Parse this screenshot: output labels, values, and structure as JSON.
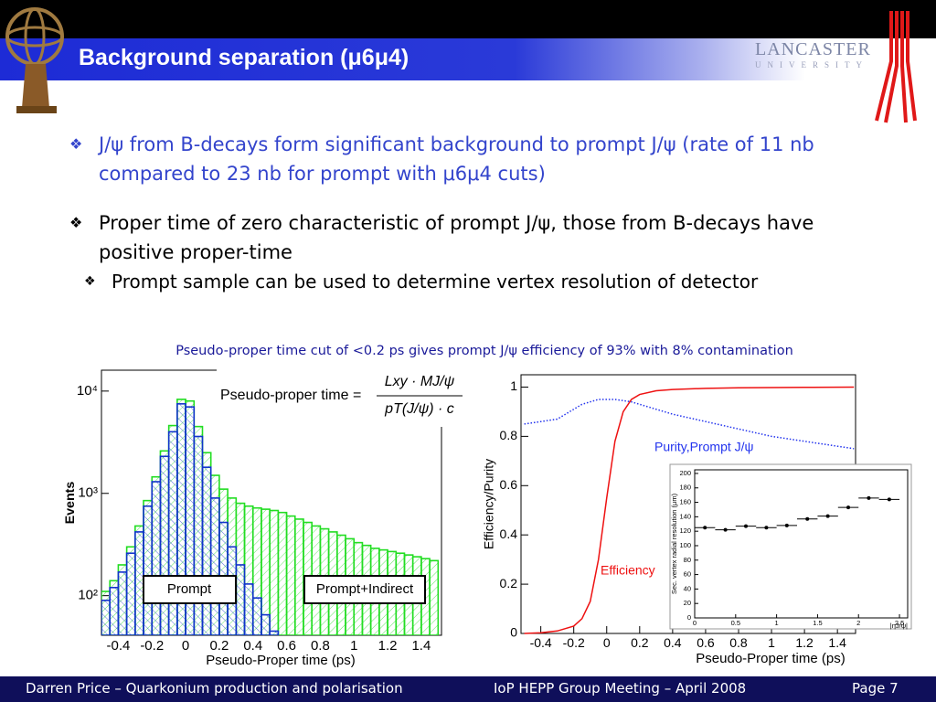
{
  "header": {
    "title": "Background separation (μ6μ4)",
    "logo_text": "LANCASTER",
    "logo_subtext": "UNIVERSITY"
  },
  "bullets": [
    {
      "text": "J/ψ from B-decays form significant background to prompt J/ψ (rate of 11 nb compared to 23 nb for prompt with μ6μ4 cuts)"
    },
    {
      "text": "Proper time of zero characteristic of prompt J/ψ, those from B-decays have positive proper-time",
      "sub": [
        "Prompt sample can be used to determine vertex resolution of detector"
      ]
    }
  ],
  "caption": "Pseudo-proper time cut of <0.2 ps gives prompt J/ψ efficiency of 93% with 8% contamination",
  "chart_data": [
    {
      "type": "histogram",
      "y_label": "Events",
      "x_label": "Pseudo-Proper time (ps)",
      "log_y": true,
      "formula": {
        "lhs": "Pseudo-proper time =",
        "numerator": "Lxy · MJ/ψ",
        "denominator": "pT(J/ψ) · c"
      },
      "bins": [
        -0.5,
        -0.45,
        -0.4,
        -0.35,
        -0.3,
        -0.25,
        -0.2,
        -0.15,
        -0.1,
        -0.05,
        0,
        0.05,
        0.1,
        0.15,
        0.2,
        0.25,
        0.3,
        0.35,
        0.4,
        0.45,
        0.5,
        0.55,
        0.6,
        0.65,
        0.7,
        0.75,
        0.8,
        0.85,
        0.9,
        0.95,
        1,
        1.05,
        1.1,
        1.15,
        1.2,
        1.25,
        1.3,
        1.35,
        1.4,
        1.45,
        1.5
      ],
      "series": [
        {
          "name": "Prompt+Indirect",
          "color": "#22dd22",
          "values": [
            110,
            140,
            200,
            300,
            480,
            850,
            1450,
            2600,
            4600,
            8300,
            8000,
            4500,
            2500,
            1500,
            1100,
            900,
            800,
            750,
            720,
            700,
            680,
            650,
            600,
            560,
            520,
            480,
            450,
            420,
            390,
            360,
            330,
            310,
            290,
            280,
            270,
            260,
            250,
            240,
            230,
            220
          ]
        },
        {
          "name": "Prompt",
          "color": "#1133cc",
          "values": [
            90,
            120,
            170,
            260,
            420,
            750,
            1300,
            2300,
            4000,
            7500,
            7000,
            3600,
            1800,
            900,
            520,
            300,
            200,
            130,
            95,
            65,
            45,
            0,
            0,
            0,
            0,
            0,
            0,
            0,
            0,
            0,
            0,
            0,
            0,
            0,
            0,
            0,
            0,
            0,
            0,
            0
          ]
        }
      ],
      "xlim": [
        -0.5,
        1.52
      ],
      "ylim": [
        41,
        16000
      ],
      "xticks": [
        -0.4,
        -0.2,
        0,
        0.2,
        0.4,
        0.6,
        0.8,
        1,
        1.2,
        1.4
      ],
      "yticks": [
        {
          "value": 100,
          "label": "10²"
        },
        {
          "value": 1000,
          "label": "10³"
        },
        {
          "value": 10000,
          "label": "10⁴"
        }
      ]
    },
    {
      "type": "line",
      "y_label": "Efficiency/Purity",
      "x_label": "Pseudo-Proper time (ps)",
      "x": [
        -0.5,
        -0.4,
        -0.3,
        -0.2,
        -0.15,
        -0.1,
        -0.05,
        0,
        0.05,
        0.1,
        0.15,
        0.2,
        0.3,
        0.4,
        0.6,
        0.8,
        1,
        1.2,
        1.5
      ],
      "series": [
        {
          "name": "Efficiency",
          "color": "#ee1111",
          "values": [
            0,
            0.003,
            0.01,
            0.03,
            0.06,
            0.13,
            0.3,
            0.55,
            0.78,
            0.9,
            0.95,
            0.97,
            0.985,
            0.99,
            0.995,
            0.997,
            0.998,
            0.999,
            1
          ]
        },
        {
          "name": "Purity,Prompt J/ψ",
          "color": "#2233ee",
          "dash": "dotted",
          "values": [
            0.85,
            0.86,
            0.87,
            0.91,
            0.93,
            0.94,
            0.95,
            0.95,
            0.95,
            0.945,
            0.94,
            0.93,
            0.91,
            0.89,
            0.86,
            0.83,
            0.8,
            0.78,
            0.75
          ]
        }
      ],
      "xlim": [
        -0.52,
        1.51
      ],
      "ylim": [
        0,
        1.05
      ],
      "xticks": [
        -0.4,
        -0.2,
        0,
        0.2,
        0.4,
        0.6,
        0.8,
        1,
        1.2,
        1.4
      ],
      "yticks": [
        0,
        0.2,
        0.4,
        0.6,
        0.8,
        1
      ]
    },
    {
      "type": "scatter",
      "y_label": "Sec. vertex radial resolution (μm)",
      "x_label": "|ηJ/ψ|",
      "color": "#000000",
      "x": [
        0.125,
        0.375,
        0.625,
        0.875,
        1.125,
        1.375,
        1.625,
        1.875,
        2.125,
        2.375
      ],
      "xerr": [
        0.125,
        0.125,
        0.125,
        0.125,
        0.125,
        0.125,
        0.125,
        0.125,
        0.125,
        0.125
      ],
      "values": [
        125,
        122,
        127,
        125,
        128,
        137,
        141,
        153,
        166,
        164
      ],
      "xlim": [
        0,
        2.6
      ],
      "ylim": [
        0,
        205
      ],
      "xticks": [
        0,
        0.5,
        1,
        1.5,
        2,
        2.5
      ],
      "yticks": [
        0,
        20,
        40,
        60,
        80,
        100,
        120,
        140,
        160,
        180,
        200
      ]
    }
  ],
  "footer": {
    "left": "Darren Price – Quarkonium production and polarisation",
    "center": "IoP HEPP Group Meeting – April 2008",
    "right": "Page 7"
  }
}
